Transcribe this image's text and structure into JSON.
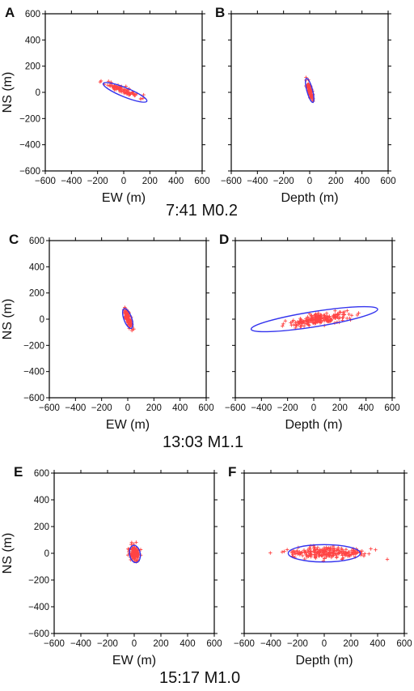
{
  "figure": {
    "captions": [
      "7:41 M0.2",
      "13:03 M1.1",
      "15:17 M1.0"
    ]
  },
  "chart_data": [
    {
      "type": "scatter",
      "panel_label": "A",
      "xlabel": "EW (m)",
      "ylabel": "NS (m)",
      "xlim": [
        -600,
        600
      ],
      "ylim": [
        -600,
        600
      ],
      "xticks": [
        -600,
        -400,
        -200,
        0,
        200,
        400,
        600
      ],
      "yticks": [
        -600,
        -400,
        -200,
        0,
        200,
        400,
        600
      ],
      "ellipse": {
        "center": [
          10,
          0
        ],
        "semi_major": 180,
        "semi_minor": 35,
        "rotation_deg": -22
      },
      "points_spread": {
        "center": [
          -10,
          20
        ],
        "major": 170,
        "minor": 30,
        "rotation_deg": -22,
        "count": 90,
        "seed": 11
      }
    },
    {
      "type": "scatter",
      "panel_label": "B",
      "xlabel": "Depth (m)",
      "ylabel": "",
      "xlim": [
        -600,
        600
      ],
      "ylim": [
        -600,
        600
      ],
      "xticks": [
        -600,
        -400,
        -200,
        0,
        200,
        400,
        600
      ],
      "yticks": [
        -600,
        -400,
        -200,
        0,
        200,
        400,
        600
      ],
      "ellipse": {
        "center": [
          0,
          15
        ],
        "semi_major": 95,
        "semi_minor": 22,
        "rotation_deg": -75
      },
      "points_spread": {
        "center": [
          0,
          15
        ],
        "major": 90,
        "minor": 18,
        "rotation_deg": -75,
        "count": 70,
        "seed": 23
      }
    },
    {
      "type": "scatter",
      "panel_label": "C",
      "xlabel": "EW (m)",
      "ylabel": "NS (m)",
      "xlim": [
        -600,
        600
      ],
      "ylim": [
        -600,
        600
      ],
      "xticks": [
        -600,
        -400,
        -200,
        0,
        200,
        400,
        600
      ],
      "yticks": [
        -600,
        -400,
        -200,
        0,
        200,
        400,
        600
      ],
      "ellipse": {
        "center": [
          0,
          5
        ],
        "semi_major": 80,
        "semi_minor": 30,
        "rotation_deg": -70
      },
      "points_spread": {
        "center": [
          5,
          0
        ],
        "major": 95,
        "minor": 25,
        "rotation_deg": -70,
        "count": 80,
        "seed": 37
      }
    },
    {
      "type": "scatter",
      "panel_label": "D",
      "xlabel": "Depth (m)",
      "ylabel": "",
      "xlim": [
        -600,
        600
      ],
      "ylim": [
        -600,
        600
      ],
      "xticks": [
        -600,
        -400,
        -200,
        0,
        200,
        400,
        600
      ],
      "yticks": [
        -600,
        -400,
        -200,
        0,
        200,
        400,
        600
      ],
      "ellipse": {
        "center": [
          5,
          0
        ],
        "semi_major": 490,
        "semi_minor": 58,
        "rotation_deg": 9
      },
      "points_spread": {
        "center": [
          40,
          0
        ],
        "major": 280,
        "minor": 45,
        "rotation_deg": 9,
        "count": 220,
        "seed": 41
      }
    },
    {
      "type": "scatter",
      "panel_label": "E",
      "xlabel": "EW (m)",
      "ylabel": "NS (m)",
      "xlim": [
        -600,
        600
      ],
      "ylim": [
        -600,
        600
      ],
      "xticks": [
        -600,
        -400,
        -200,
        0,
        200,
        400,
        600
      ],
      "yticks": [
        -600,
        -400,
        -200,
        0,
        200,
        400,
        600
      ],
      "ellipse": {
        "center": [
          5,
          -5
        ],
        "semi_major": 65,
        "semi_minor": 40,
        "rotation_deg": -80
      },
      "points_spread": {
        "center": [
          5,
          0
        ],
        "major": 75,
        "minor": 45,
        "rotation_deg": -80,
        "count": 120,
        "seed": 53
      }
    },
    {
      "type": "scatter",
      "panel_label": "F",
      "xlabel": "Depth (m)",
      "ylabel": "",
      "xlim": [
        -600,
        600
      ],
      "ylim": [
        -600,
        600
      ],
      "xticks": [
        -600,
        -400,
        -200,
        0,
        200,
        400,
        600
      ],
      "yticks": [
        -600,
        -400,
        -200,
        0,
        200,
        400,
        600
      ],
      "ellipse": {
        "center": [
          0,
          0
        ],
        "semi_major": 270,
        "semi_minor": 65,
        "rotation_deg": 0
      },
      "points_spread": {
        "center": [
          0,
          0
        ],
        "major": 330,
        "minor": 50,
        "rotation_deg": 0,
        "count": 240,
        "seed": 67
      }
    }
  ],
  "colors": {
    "ellipse": "#3333ee",
    "points": "#ff4444",
    "axis": "#000000"
  }
}
